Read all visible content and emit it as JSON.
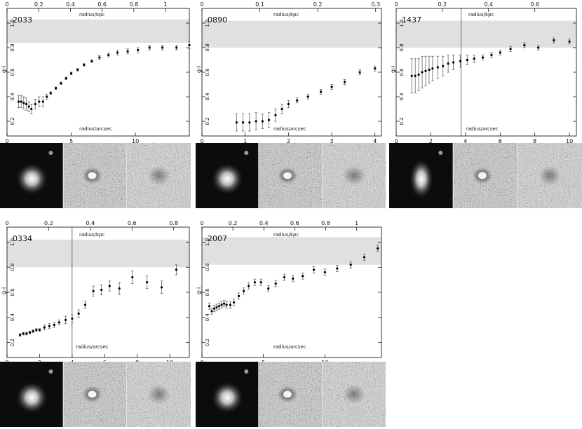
{
  "chart_data": [
    {
      "type": "scatter",
      "galaxy_id": "2033",
      "xlabel": "radius/arcsec",
      "top_xlabel": "radius/kpc",
      "ylabel": "g-i",
      "xlim": [
        0,
        14.2
      ],
      "ylim": [
        0.08,
        1.12
      ],
      "top_xlim": [
        0,
        1.15
      ],
      "xticks": [
        0,
        5,
        10
      ],
      "top_xticks": [
        "0",
        "0.2",
        "0.4",
        "0.6",
        "0.8",
        "1"
      ],
      "yticks": [
        "0.2",
        "0.4",
        "0.6",
        "0.8",
        "1.0"
      ],
      "band": [
        0.84,
        1.03
      ],
      "vline": null,
      "x": [
        0.9,
        1.1,
        1.3,
        1.5,
        1.7,
        1.9,
        2.2,
        2.5,
        2.8,
        3.1,
        3.4,
        3.8,
        4.2,
        4.6,
        5.0,
        5.5,
        6.0,
        6.6,
        7.2,
        7.9,
        8.6,
        9.4,
        10.2,
        11.1,
        12.1,
        13.2,
        14.2
      ],
      "y": [
        0.36,
        0.36,
        0.35,
        0.34,
        0.32,
        0.3,
        0.34,
        0.36,
        0.36,
        0.4,
        0.43,
        0.47,
        0.51,
        0.55,
        0.59,
        0.62,
        0.66,
        0.69,
        0.72,
        0.74,
        0.76,
        0.77,
        0.78,
        0.8,
        0.8,
        0.8,
        0.82
      ],
      "yerr": [
        0.05,
        0.05,
        0.05,
        0.05,
        0.04,
        0.04,
        0.04,
        0.04,
        0.04,
        0.02,
        0.01,
        0.01,
        0.01,
        0.01,
        0.01,
        0.01,
        0.01,
        0.01,
        0.015,
        0.015,
        0.02,
        0.02,
        0.02,
        0.02,
        0.02,
        0.02,
        0.03
      ]
    },
    {
      "type": "scatter",
      "galaxy_id": "0890",
      "xlabel": "radius/arcsec",
      "top_xlabel": "radius/kpc",
      "ylabel": "g-i",
      "xlim": [
        0,
        4.15
      ],
      "ylim": [
        0.08,
        1.12
      ],
      "top_xlim": [
        0,
        0.31
      ],
      "xticks": [
        0,
        1,
        2,
        3,
        4
      ],
      "top_xticks": [
        "0",
        "0.1",
        "0.2",
        "0.3"
      ],
      "yticks": [
        "0.2",
        "0.4",
        "0.6",
        "0.8",
        "1.0"
      ],
      "band": [
        0.8,
        1.02
      ],
      "vline": null,
      "x": [
        0.8,
        0.95,
        1.1,
        1.25,
        1.4,
        1.55,
        1.7,
        1.85,
        2.0,
        2.2,
        2.45,
        2.75,
        3.0,
        3.3,
        3.65,
        4.0
      ],
      "y": [
        0.19,
        0.19,
        0.19,
        0.2,
        0.2,
        0.21,
        0.25,
        0.3,
        0.34,
        0.37,
        0.4,
        0.44,
        0.48,
        0.52,
        0.6,
        0.63
      ],
      "yerr": [
        0.07,
        0.07,
        0.07,
        0.07,
        0.06,
        0.06,
        0.05,
        0.04,
        0.03,
        0.02,
        0.02,
        0.02,
        0.02,
        0.02,
        0.02,
        0.02
      ]
    },
    {
      "type": "scatter",
      "galaxy_id": "1437",
      "xlabel": "radius/arcsec",
      "top_xlabel": "radius/kpc",
      "ylabel": "g-i",
      "xlim": [
        0,
        10.4
      ],
      "ylim": [
        0.08,
        1.12
      ],
      "top_xlim": [
        0,
        0.78
      ],
      "xticks": [
        0,
        2,
        4,
        6,
        8,
        10
      ],
      "top_xticks": [
        "0",
        "0.2",
        "0.4",
        "0.6"
      ],
      "yticks": [
        "0.2",
        "0.4",
        "0.6",
        "0.8",
        "1.0"
      ],
      "band": [
        0.8,
        1.02
      ],
      "vline": 3.75,
      "x": [
        0.9,
        1.1,
        1.3,
        1.5,
        1.7,
        1.9,
        2.1,
        2.4,
        2.7,
        3.0,
        3.3,
        3.7,
        4.1,
        4.5,
        5.0,
        5.5,
        6.0,
        6.6,
        7.4,
        8.2,
        9.1,
        10.0
      ],
      "y": [
        0.57,
        0.57,
        0.58,
        0.6,
        0.61,
        0.62,
        0.63,
        0.64,
        0.65,
        0.67,
        0.68,
        0.69,
        0.7,
        0.71,
        0.72,
        0.74,
        0.76,
        0.79,
        0.82,
        0.8,
        0.86,
        0.85
      ],
      "yerr": [
        0.14,
        0.14,
        0.13,
        0.13,
        0.12,
        0.11,
        0.1,
        0.09,
        0.08,
        0.07,
        0.06,
        0.05,
        0.04,
        0.03,
        0.02,
        0.02,
        0.02,
        0.02,
        0.02,
        0.02,
        0.02,
        0.02
      ]
    },
    {
      "type": "scatter",
      "galaxy_id": "0334",
      "xlabel": "radius/arcsec",
      "top_xlabel": "radius/kpc",
      "ylabel": "g-i",
      "xlim": [
        0,
        11.2
      ],
      "ylim": [
        0.08,
        1.12
      ],
      "top_xlim": [
        0,
        0.875
      ],
      "xticks": [
        0,
        2,
        4,
        6,
        8,
        10
      ],
      "top_xticks": [
        "0",
        "0.2",
        "0.4",
        "0.6",
        "0.8"
      ],
      "yticks": [
        "0.2",
        "0.4",
        "0.6",
        "0.8",
        "1.0"
      ],
      "band": [
        0.8,
        1.02
      ],
      "vline": 4.0,
      "x": [
        0.8,
        1.0,
        1.2,
        1.4,
        1.6,
        1.8,
        2.0,
        2.3,
        2.6,
        2.9,
        3.2,
        3.6,
        4.0,
        4.4,
        4.8,
        5.3,
        5.8,
        6.3,
        6.9,
        7.7,
        8.6,
        9.5,
        10.4
      ],
      "y": [
        0.26,
        0.27,
        0.27,
        0.28,
        0.29,
        0.3,
        0.3,
        0.32,
        0.33,
        0.34,
        0.36,
        0.38,
        0.39,
        0.43,
        0.5,
        0.61,
        0.62,
        0.65,
        0.63,
        0.72,
        0.68,
        0.64,
        0.78
      ],
      "yerr": [
        0.01,
        0.01,
        0.01,
        0.01,
        0.01,
        0.01,
        0.01,
        0.02,
        0.02,
        0.02,
        0.02,
        0.03,
        0.03,
        0.03,
        0.03,
        0.04,
        0.04,
        0.04,
        0.05,
        0.05,
        0.05,
        0.05,
        0.04
      ]
    },
    {
      "type": "scatter",
      "galaxy_id": "2007",
      "xlabel": "radius/arcsec",
      "top_xlabel": "radius/kpc",
      "ylabel": "g-i",
      "xlim": [
        0,
        14.6
      ],
      "ylim": [
        0.08,
        1.12
      ],
      "top_xlim": [
        0,
        1.16
      ],
      "xticks": [
        0,
        5,
        10
      ],
      "top_xticks": [
        "0",
        "0.2",
        "0.4",
        "0.6",
        "0.8",
        "1"
      ],
      "yticks": [
        "0.2",
        "0.4",
        "0.6",
        "0.8",
        "1.0"
      ],
      "band": [
        0.82,
        1.04
      ],
      "vline": null,
      "x": [
        0.6,
        0.8,
        1.0,
        1.2,
        1.4,
        1.6,
        1.8,
        2.0,
        2.3,
        2.6,
        3.0,
        3.4,
        3.8,
        4.3,
        4.8,
        5.4,
        6.0,
        6.7,
        7.4,
        8.2,
        9.1,
        10.0,
        11.0,
        12.1,
        13.2,
        14.3
      ],
      "y": [
        0.49,
        0.45,
        0.47,
        0.48,
        0.49,
        0.5,
        0.51,
        0.5,
        0.5,
        0.52,
        0.57,
        0.61,
        0.65,
        0.68,
        0.68,
        0.63,
        0.67,
        0.72,
        0.71,
        0.73,
        0.78,
        0.76,
        0.79,
        0.82,
        0.88,
        0.95
      ]
    }
  ]
}
